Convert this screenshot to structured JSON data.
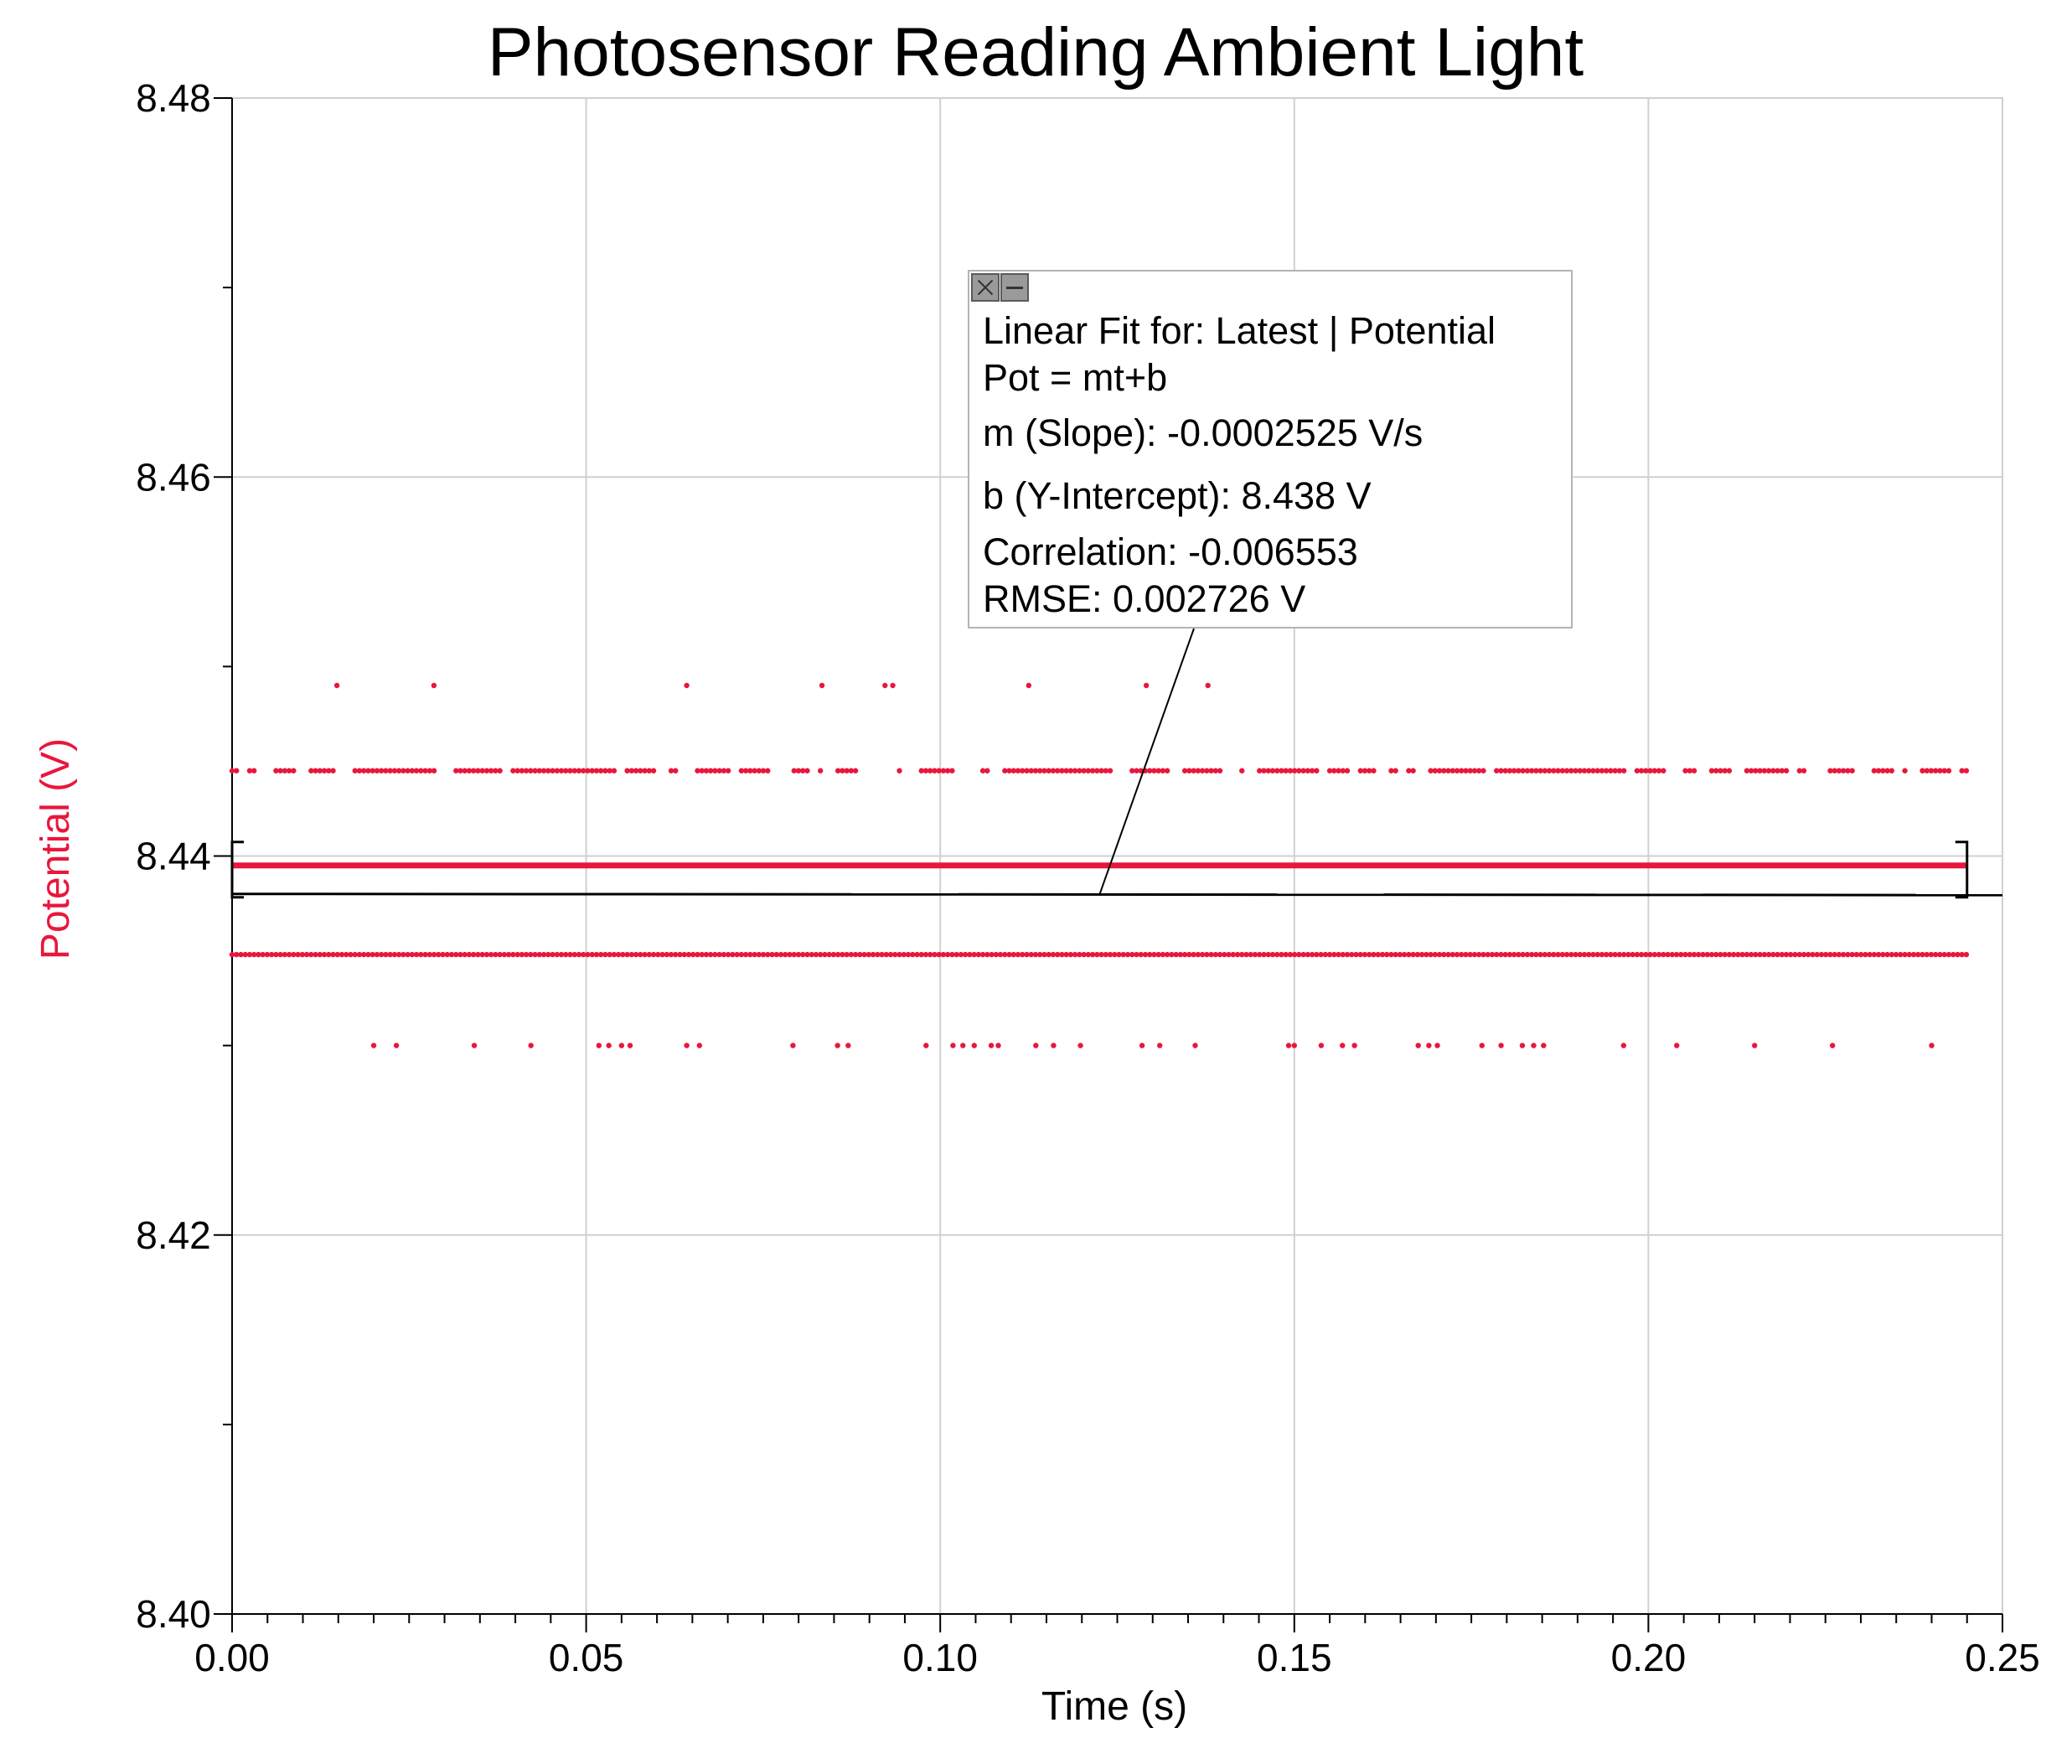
{
  "chart_data": {
    "type": "scatter",
    "title": "Photosensor Reading Ambient Light",
    "xlabel": "Time (s)",
    "ylabel": "Potential (V)",
    "xlim": [
      0.0,
      0.25
    ],
    "ylim": [
      8.4,
      8.48
    ],
    "x_ticks": [
      "0.00",
      "0.05",
      "0.10",
      "0.15",
      "0.20",
      "0.25"
    ],
    "y_ticks": [
      "8.40",
      "8.42",
      "8.44",
      "8.46",
      "8.48"
    ],
    "grid": true,
    "series": [
      {
        "name": "Potential",
        "color": "#e8173c",
        "levels": [
          {
            "y": 8.449,
            "x": [
              0.0148,
              0.0285,
              0.0642,
              0.0833,
              0.0922,
              0.0933,
              0.1125,
              0.1291,
              0.1378
            ]
          },
          {
            "y": 8.4445,
            "x_range": [
              0.0,
              0.245
            ],
            "density": "dense, many gaps"
          },
          {
            "y": 8.4348,
            "x_range": [
              0.0,
              0.245
            ],
            "density": "continuous"
          },
          {
            "y": 8.43,
            "x": [
              0.02,
              0.0232,
              0.0342,
              0.0422,
              0.0518,
              0.0532,
              0.055,
              0.0562,
              0.0642,
              0.066,
              0.0792,
              0.0855,
              0.087,
              0.098,
              0.1018,
              0.1032,
              0.1048,
              0.1072,
              0.1082,
              0.1135,
              0.116,
              0.1198,
              0.1285,
              0.131,
              0.136,
              0.1492,
              0.15,
              0.1538,
              0.1568,
              0.1585,
              0.1675,
              0.169,
              0.1702,
              0.1765,
              0.1792,
              0.1822,
              0.1838,
              0.1852,
              0.1965,
              0.204,
              0.215,
              0.226,
              0.24
            ]
          }
        ]
      }
    ],
    "fit": {
      "type": "linear",
      "slope": -0.0002525,
      "intercept": 8.438,
      "x_range": [
        0.0,
        0.245
      ],
      "color": "#000000"
    },
    "mean_line": {
      "y": 8.4395,
      "color": "#e8173c"
    },
    "annotation": {
      "lines": [
        "Linear Fit for: Latest | Potential",
        "Pot = mt+b",
        "m (Slope): -0.0002525 V/s",
        "b (Y-Intercept): 8.438 V",
        "Correlation: -0.006553",
        "RMSE: 0.002726 V"
      ],
      "anchor_x": 0.1225
    }
  }
}
